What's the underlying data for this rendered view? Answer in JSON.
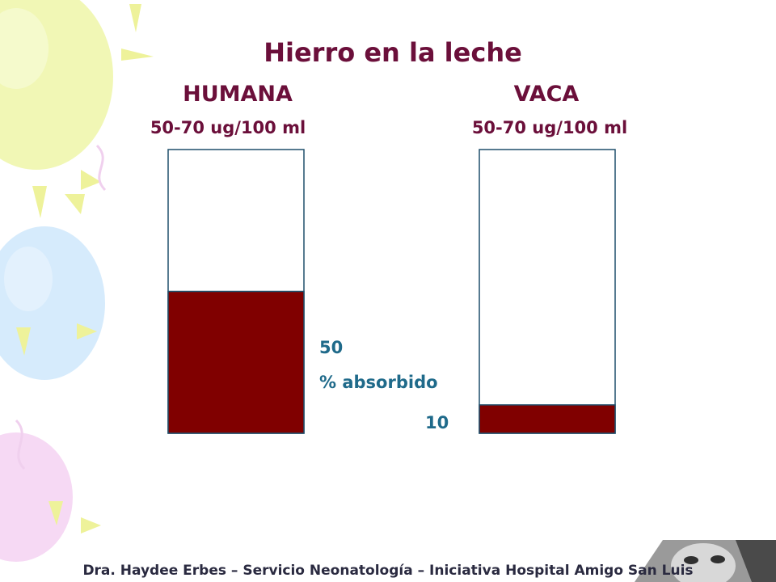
{
  "slide": {
    "title": "Hierro en la leche",
    "left_heading": "HUMANA",
    "right_heading": "VACA",
    "left_sub": "50-70 ug/100 ml",
    "right_sub": "50-70 ug/100 ml",
    "label_value_left": "50",
    "label_axis": "% absorbido",
    "label_value_right": "10",
    "footer": "Dra. Haydee Erbes – Servicio Neonatología – Iniciativa Hospital Amigo San Luis"
  },
  "chart_data": {
    "type": "bar",
    "categories": [
      "HUMANA",
      "VACA"
    ],
    "values": [
      50,
      10
    ],
    "ylabel": "% absorbido",
    "ylim": [
      0,
      100
    ],
    "grid": false,
    "colors": {
      "fill": "#800000",
      "outline": "#1f4f6b"
    }
  },
  "decor": {
    "balloon_colors": [
      "#eef6a8",
      "#cfe8fb",
      "#f4d2f2"
    ],
    "icons": [
      "balloon-icon",
      "baby-photo-icon"
    ]
  }
}
